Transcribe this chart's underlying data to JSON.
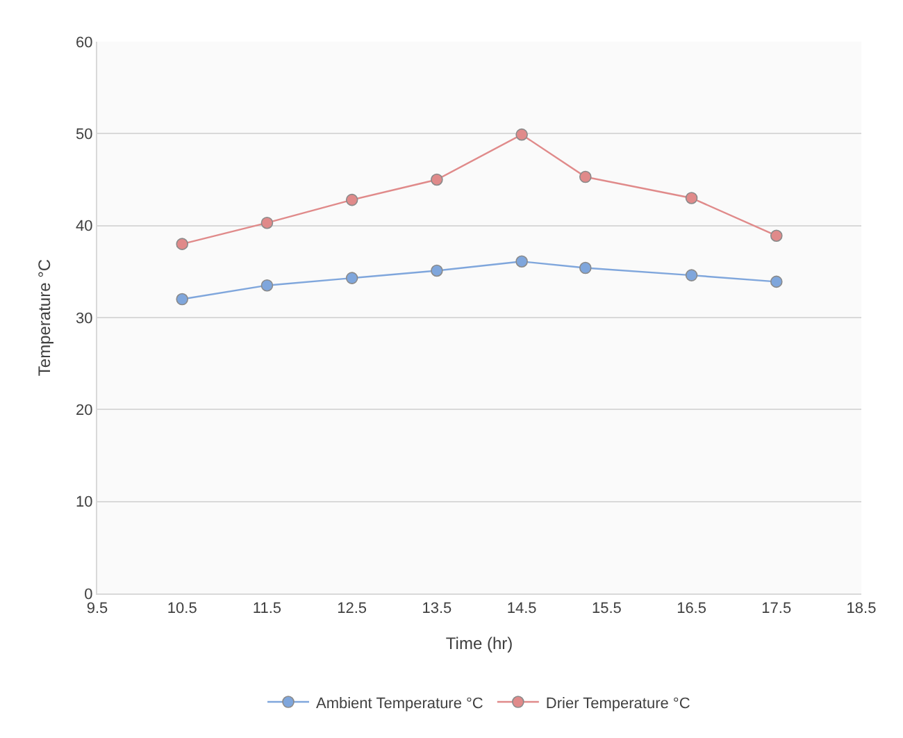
{
  "chart_data": {
    "type": "line",
    "xlabel": "Time (hr)",
    "ylabel": "Temperature °C",
    "x": [
      10.5,
      11.5,
      12.5,
      13.5,
      14.5,
      15.25,
      16.5,
      17.5
    ],
    "series": [
      {
        "name": "Ambient Temperature °C",
        "color": "#7fa6dc",
        "values": [
          32.0,
          33.5,
          34.3,
          35.1,
          36.1,
          35.4,
          34.6,
          33.9
        ]
      },
      {
        "name": "Drier Temperature °C",
        "color": "#e08a8a",
        "values": [
          38.0,
          40.3,
          42.8,
          45.0,
          49.9,
          45.3,
          43.0,
          38.9
        ]
      }
    ],
    "xlim": [
      9.5,
      18.5
    ],
    "xticks": [
      9.5,
      10.5,
      11.5,
      12.5,
      13.5,
      14.5,
      15.5,
      16.5,
      17.5,
      18.5
    ],
    "ylim": [
      0,
      60
    ],
    "yticks": [
      0,
      10,
      20,
      30,
      40,
      50,
      60
    ],
    "grid": "y",
    "legend": "bottom",
    "marker": "circle",
    "line_style": "solid"
  }
}
